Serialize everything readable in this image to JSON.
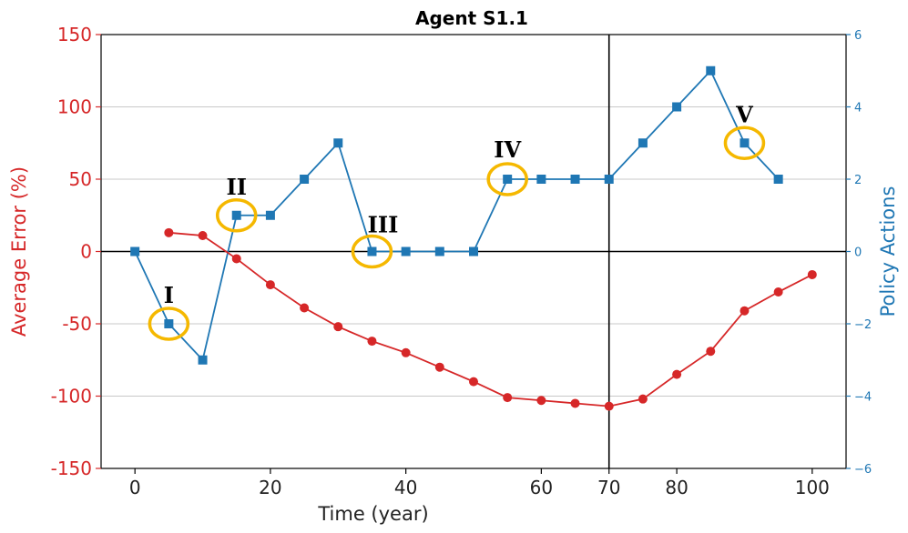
{
  "chart_data": {
    "type": "line",
    "title": "Agent S1.1",
    "xlabel": "Time (year)",
    "ylabel_left": "Average Error (%)",
    "ylabel_right": "Policy Actions",
    "xlim": [
      -5,
      105
    ],
    "ylim_left": [
      -150,
      150
    ],
    "ylim_right": [
      -6,
      6
    ],
    "x_ticks": [
      0,
      20,
      40,
      60,
      70,
      80,
      100
    ],
    "y_ticks_left": [
      150,
      100,
      50,
      0,
      -50,
      -100,
      -150
    ],
    "y_ticks_right": [
      6,
      4,
      2,
      0,
      -2,
      -4,
      -6
    ],
    "grid": "horizontal",
    "reference_lines": {
      "x": 70,
      "y": 0
    },
    "colors": {
      "error": "#d62728",
      "policy": "#1f77b4",
      "highlight": "#f5b800"
    },
    "series": [
      {
        "axis": "left",
        "marker": "circle",
        "x": [
          5,
          10,
          15,
          20,
          25,
          30,
          35,
          40,
          45,
          50,
          55,
          60,
          65,
          70,
          75,
          80,
          85,
          90,
          95,
          100
        ],
        "values": [
          13,
          11,
          -5,
          -23,
          -39,
          -52,
          -62,
          -70,
          -80,
          -90,
          -101,
          -103,
          -105,
          -107,
          -102,
          -85,
          -69,
          -41,
          -28,
          -16
        ]
      },
      {
        "axis": "right",
        "marker": "square",
        "x": [
          0,
          5,
          10,
          15,
          20,
          25,
          30,
          35,
          40,
          45,
          50,
          55,
          60,
          65,
          70,
          75,
          80,
          85,
          90,
          95
        ],
        "values": [
          0,
          -2,
          -3,
          1,
          1,
          2,
          3,
          0,
          0,
          0,
          0,
          2,
          2,
          2,
          2,
          3,
          4,
          5,
          3,
          2
        ]
      }
    ],
    "annotations": [
      {
        "label": "I",
        "x": 5,
        "y": -2
      },
      {
        "label": "II",
        "x": 15,
        "y": 1
      },
      {
        "label": "III",
        "x": 35,
        "y": 0
      },
      {
        "label": "IV",
        "x": 55,
        "y": 2
      },
      {
        "label": "V",
        "x": 90,
        "y": 3
      }
    ]
  }
}
